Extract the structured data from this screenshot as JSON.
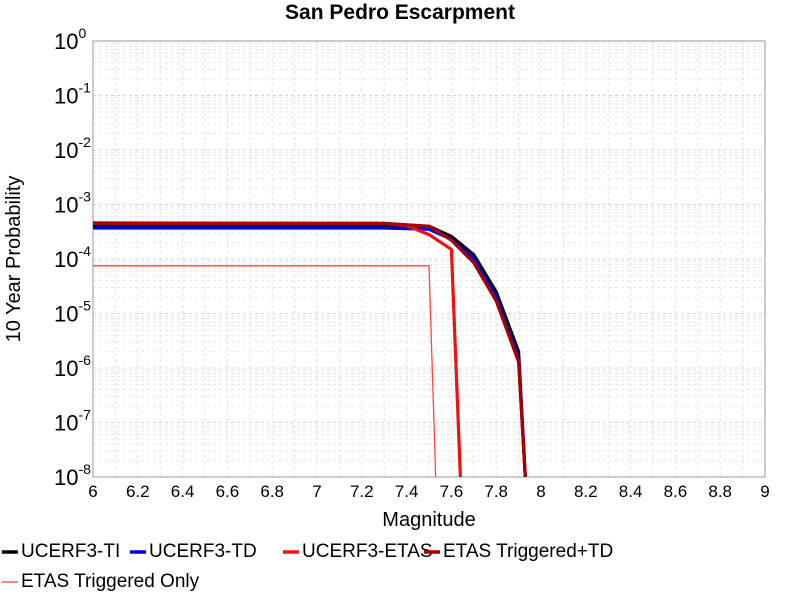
{
  "chart_data": {
    "type": "line",
    "title": "San Pedro Escarpment",
    "xlabel": "Magnitude",
    "ylabel": "10 Year Probability",
    "xlim": [
      6,
      9
    ],
    "ylim": [
      1e-08,
      1
    ],
    "y_scale": "log",
    "grid": true,
    "legend_position": "bottom",
    "x_ticks": [
      {
        "value": 6.0,
        "label": "6"
      },
      {
        "value": 6.2,
        "label": "6.2"
      },
      {
        "value": 6.4,
        "label": "6.4"
      },
      {
        "value": 6.6,
        "label": "6.6"
      },
      {
        "value": 6.8,
        "label": "6.8"
      },
      {
        "value": 7.0,
        "label": "7"
      },
      {
        "value": 7.2,
        "label": "7.2"
      },
      {
        "value": 7.4,
        "label": "7.4"
      },
      {
        "value": 7.6,
        "label": "7.6"
      },
      {
        "value": 7.8,
        "label": "7.8"
      },
      {
        "value": 8.0,
        "label": "8"
      },
      {
        "value": 8.2,
        "label": "8.2"
      },
      {
        "value": 8.4,
        "label": "8.4"
      },
      {
        "value": 8.6,
        "label": "8.6"
      },
      {
        "value": 8.8,
        "label": "8.8"
      },
      {
        "value": 9.0,
        "label": "9"
      }
    ],
    "y_ticks": [
      {
        "value": 1.0,
        "base": "10",
        "exp": "0"
      },
      {
        "value": 0.1,
        "base": "10",
        "exp": "-1"
      },
      {
        "value": 0.01,
        "base": "10",
        "exp": "-2"
      },
      {
        "value": 0.001,
        "base": "10",
        "exp": "-3"
      },
      {
        "value": 0.0001,
        "base": "10",
        "exp": "-4"
      },
      {
        "value": 1e-05,
        "base": "10",
        "exp": "-5"
      },
      {
        "value": 1e-06,
        "base": "10",
        "exp": "-6"
      },
      {
        "value": 1e-07,
        "base": "10",
        "exp": "-7"
      },
      {
        "value": 1e-08,
        "base": "10",
        "exp": "-8"
      }
    ],
    "series": [
      {
        "name": "UCERF3-TI",
        "color": "#000000",
        "width": "thick",
        "x": [
          6.0,
          7.3,
          7.5,
          7.6,
          7.7,
          7.8,
          7.9,
          7.93
        ],
        "y": [
          0.00042,
          0.00042,
          0.0004,
          0.00026,
          0.00012,
          2.5e-05,
          2e-06,
          1e-08
        ]
      },
      {
        "name": "UCERF3-TD",
        "color": "#0000dd",
        "width": "thick",
        "x": [
          6.0,
          7.3,
          7.5,
          7.6,
          7.7,
          7.8,
          7.9,
          7.93
        ],
        "y": [
          0.00037,
          0.00037,
          0.00035,
          0.00023,
          0.0001,
          2e-05,
          1.5e-06,
          1e-08
        ]
      },
      {
        "name": "UCERF3-ETAS",
        "color": "#ee1111",
        "width": "thick",
        "x": [
          6.0,
          7.3,
          7.4,
          7.5,
          7.6,
          7.64
        ],
        "y": [
          0.00046,
          0.00045,
          0.00041,
          0.00028,
          0.00015,
          1e-08
        ]
      },
      {
        "name": "ETAS Triggered+TD",
        "color": "#aa0000",
        "width": "thick",
        "x": [
          6.0,
          7.3,
          7.5,
          7.6,
          7.7,
          7.8,
          7.9,
          7.93
        ],
        "y": [
          0.00045,
          0.00045,
          0.0004,
          0.00022,
          8.5e-05,
          1.7e-05,
          1.3e-06,
          1e-08
        ]
      },
      {
        "name": "ETAS Triggered Only",
        "color": "#ff4444",
        "width": "thin",
        "x": [
          6.0,
          7.5,
          7.53
        ],
        "y": [
          7.5e-05,
          7.5e-05,
          1e-08
        ]
      }
    ]
  }
}
